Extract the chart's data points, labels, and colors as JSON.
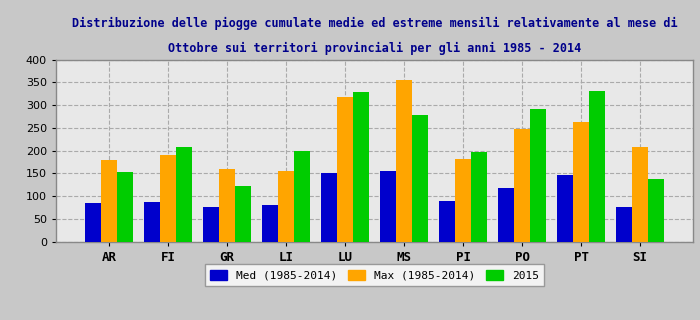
{
  "title_line1": "Distribuzione delle piogge cumulate medie ed estreme mensili relativamente al mese di",
  "title_line2": "Ottobre sui territori provinciali per gli anni 1985 - 2014",
  "categories": [
    "AR",
    "FI",
    "GR",
    "LI",
    "LU",
    "MS",
    "PI",
    "PO",
    "PT",
    "SI"
  ],
  "med": [
    84,
    87,
    77,
    81,
    150,
    155,
    89,
    117,
    146,
    75
  ],
  "max": [
    179,
    190,
    159,
    155,
    317,
    355,
    182,
    248,
    262,
    207
  ],
  "val2015": [
    153,
    207,
    122,
    199,
    328,
    279,
    197,
    291,
    330,
    138
  ],
  "colors": {
    "med": "#0000CC",
    "max": "#FFA500",
    "val2015": "#00CC00"
  },
  "legend_labels": [
    "Med (1985-2014)",
    "Max (1985-2014)",
    "2015"
  ],
  "ylim": [
    0,
    400
  ],
  "yticks": [
    0,
    50,
    100,
    150,
    200,
    250,
    300,
    350,
    400
  ],
  "title_color": "#00008B",
  "title_fontsize": 8.5,
  "axis_label_fontsize": 9,
  "tick_label_fontsize": 8,
  "bg_color": "#C8C8C8",
  "plot_bg_color": "#E8E8E8",
  "title_bg_color": "#E8E8E8",
  "grid_color": "#AAAAAA",
  "bar_width": 0.27
}
